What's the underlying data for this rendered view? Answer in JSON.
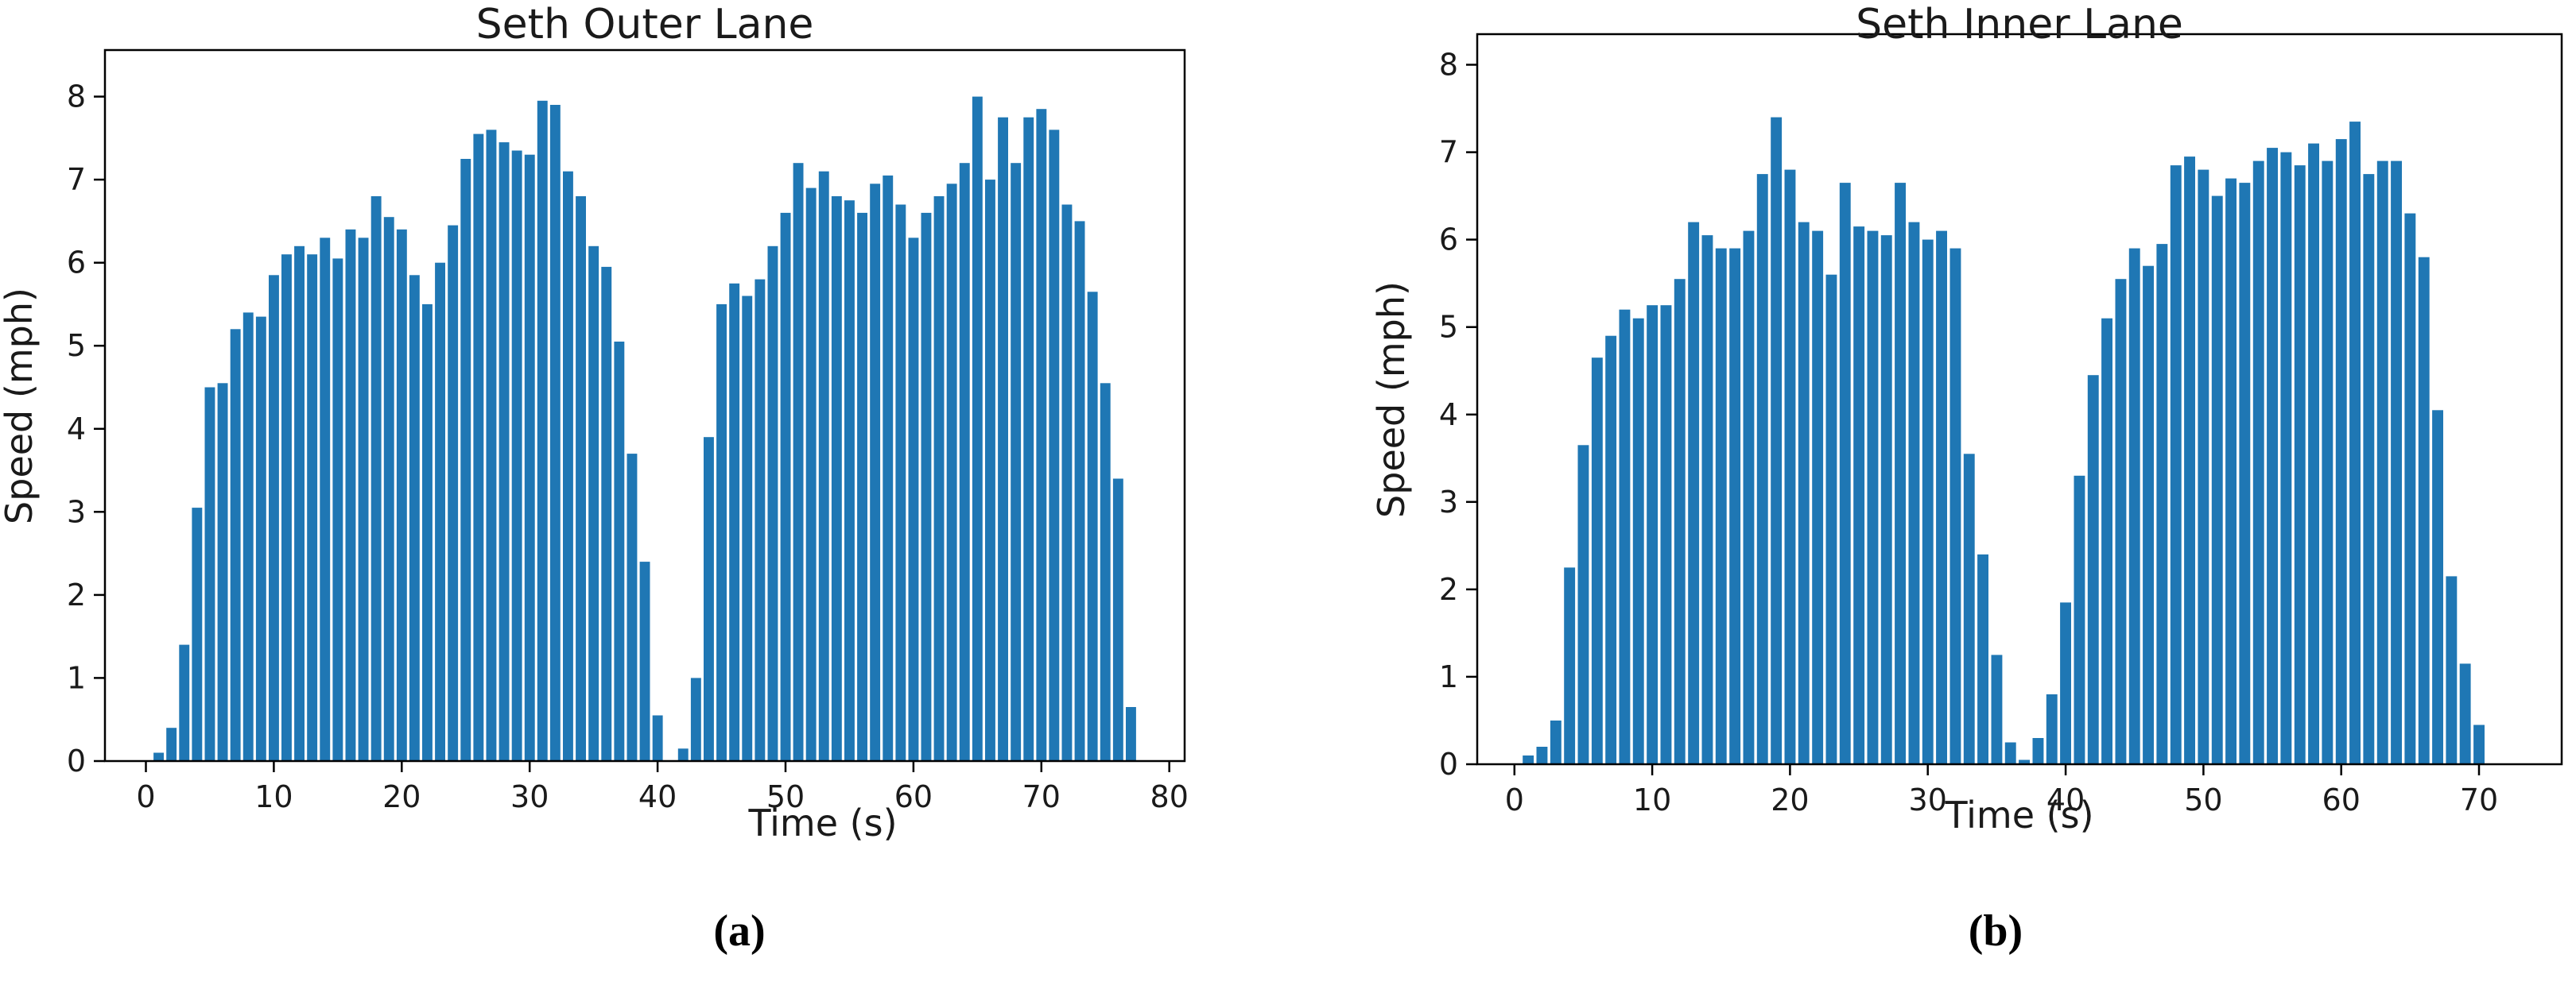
{
  "figure": {
    "panel_a_label": "(a)",
    "panel_b_label": "(b)",
    "bar_color": "#1f77b4",
    "axis_color": "#000000",
    "background": "#ffffff"
  },
  "chart_data": [
    {
      "type": "bar",
      "title": "Seth Outer Lane",
      "xlabel": "Time (s)",
      "ylabel": "Speed (mph)",
      "panel_label": "(a)",
      "bar_color": "#1f77b4",
      "xlim": [
        -3.2,
        81.2
      ],
      "ylim": [
        0,
        8.56
      ],
      "grid": false,
      "xticks": [
        0,
        10,
        20,
        30,
        40,
        50,
        60,
        70,
        80
      ],
      "yticks": [
        0,
        1,
        2,
        3,
        4,
        5,
        6,
        7,
        8
      ],
      "x": [
        1,
        2,
        3,
        4,
        5,
        6,
        7,
        8,
        9,
        10,
        11,
        12,
        13,
        14,
        15,
        16,
        17,
        18,
        19,
        20,
        21,
        22,
        23,
        24,
        25,
        26,
        27,
        28,
        29,
        30,
        31,
        32,
        33,
        34,
        35,
        36,
        37,
        38,
        39,
        40,
        42,
        43,
        44,
        45,
        46,
        47,
        48,
        49,
        50,
        51,
        52,
        53,
        54,
        55,
        56,
        57,
        58,
        59,
        60,
        61,
        62,
        63,
        64,
        65,
        66,
        67,
        68,
        69,
        70,
        71,
        72,
        73,
        74,
        75,
        76,
        77
      ],
      "values": [
        0.1,
        0.4,
        1.4,
        3.05,
        4.5,
        4.55,
        5.2,
        5.4,
        5.35,
        5.85,
        6.1,
        6.2,
        6.1,
        6.3,
        6.05,
        6.4,
        6.3,
        6.8,
        6.55,
        6.4,
        5.85,
        5.5,
        6.0,
        6.45,
        7.25,
        7.55,
        7.6,
        7.45,
        7.35,
        7.3,
        7.95,
        7.9,
        7.1,
        6.8,
        6.2,
        5.95,
        5.05,
        3.7,
        2.4,
        0.55,
        0.15,
        1.0,
        3.9,
        5.5,
        5.75,
        5.6,
        5.8,
        6.2,
        6.6,
        7.2,
        6.9,
        7.1,
        6.8,
        6.75,
        6.6,
        6.95,
        7.05,
        6.7,
        6.3,
        6.6,
        6.8,
        6.95,
        7.2,
        8.0,
        7.0,
        7.75,
        7.2,
        7.75,
        7.85,
        7.6,
        6.7,
        6.5,
        5.65,
        4.55,
        3.4,
        0.65
      ]
    },
    {
      "type": "bar",
      "title": "Seth Inner Lane",
      "xlabel": "Time (s)",
      "ylabel": "Speed (mph)",
      "panel_label": "(b)",
      "bar_color": "#1f77b4",
      "xlim": [
        -2.7,
        76.0
      ],
      "ylim": [
        0,
        8.35
      ],
      "grid": false,
      "xticks": [
        0,
        10,
        20,
        30,
        40,
        50,
        60,
        70
      ],
      "yticks": [
        0,
        1,
        2,
        3,
        4,
        5,
        6,
        7,
        8
      ],
      "x": [
        1,
        2,
        3,
        4,
        5,
        6,
        7,
        8,
        9,
        10,
        11,
        12,
        13,
        14,
        15,
        16,
        17,
        18,
        19,
        20,
        21,
        22,
        23,
        24,
        25,
        26,
        27,
        28,
        29,
        30,
        31,
        32,
        33,
        34,
        35,
        36,
        37,
        38,
        39,
        40,
        41,
        42,
        43,
        44,
        45,
        46,
        47,
        48,
        49,
        50,
        51,
        52,
        53,
        54,
        55,
        56,
        57,
        58,
        59,
        60,
        61,
        62,
        63,
        64,
        65,
        66,
        67,
        68,
        69,
        70
      ],
      "values": [
        0.1,
        0.2,
        0.5,
        2.25,
        3.65,
        4.65,
        4.9,
        5.2,
        5.1,
        5.25,
        5.25,
        5.55,
        6.2,
        6.05,
        5.9,
        5.9,
        6.1,
        6.75,
        7.4,
        6.8,
        6.2,
        6.1,
        5.6,
        6.65,
        6.15,
        6.1,
        6.05,
        6.65,
        6.2,
        6.0,
        6.1,
        5.9,
        3.55,
        2.4,
        1.25,
        0.25,
        0.05,
        0.3,
        0.8,
        1.85,
        3.3,
        4.45,
        5.1,
        5.55,
        5.9,
        5.7,
        5.95,
        6.85,
        6.95,
        6.8,
        6.5,
        6.7,
        6.65,
        6.9,
        7.05,
        7.0,
        6.85,
        7.1,
        6.9,
        7.15,
        7.35,
        6.75,
        6.9,
        6.9,
        6.3,
        5.8,
        4.05,
        2.15,
        1.15,
        0.45
      ]
    }
  ]
}
